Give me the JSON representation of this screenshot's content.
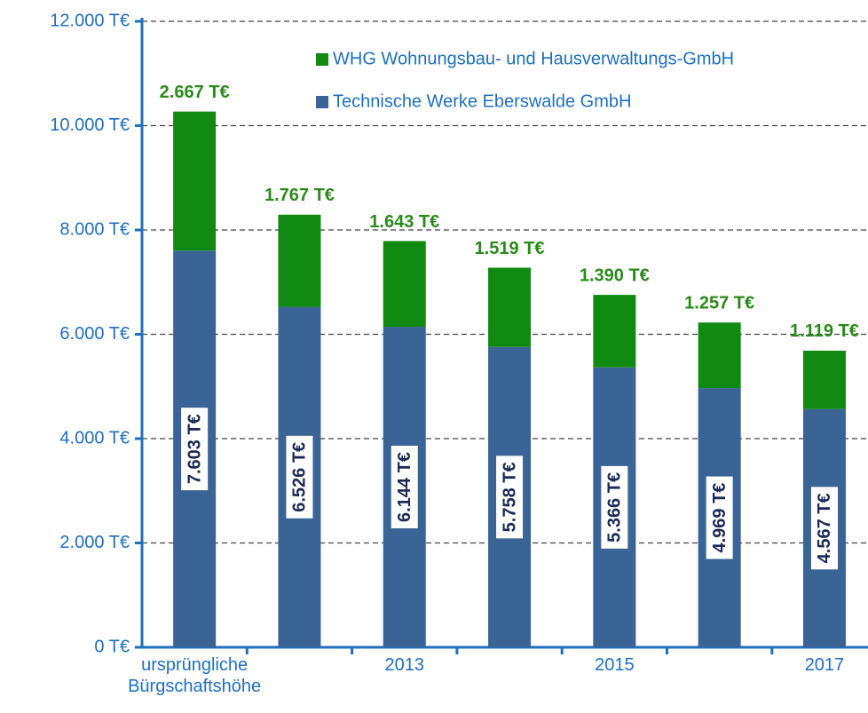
{
  "chart_data": {
    "type": "stacked_bar",
    "categories": [
      "ursprüngliche Bürgschaftshöhe",
      null,
      "2013",
      null,
      "2015",
      null,
      "2017"
    ],
    "series": [
      {
        "name": "Technische Werke Eberswalde GmbH",
        "color": "#3a6495",
        "values": [
          7603,
          6526,
          6144,
          5758,
          5366,
          4969,
          4567
        ],
        "value_labels": [
          "7.603 T€",
          "6.526 T€",
          "6.144 T€",
          "5.758 T€",
          "5.366 T€",
          "4.969 T€",
          "4.567 T€"
        ]
      },
      {
        "name": "WHG Wohnungsbau- und Hausverwaltungs-GmbH",
        "color": "#118a11",
        "values": [
          2667,
          1767,
          1643,
          1519,
          1390,
          1257,
          1119
        ],
        "value_labels": [
          "2.667 T€",
          "1.767 T€",
          "1.643 T€",
          "1.519 T€",
          "1.390 T€",
          "1.257 T€",
          "1.119 T€"
        ]
      }
    ],
    "ylim": [
      0,
      12000
    ],
    "yticks": [
      {
        "value": 0,
        "label": "0 T€"
      },
      {
        "value": 2000,
        "label": "2.000 T€"
      },
      {
        "value": 4000,
        "label": "4.000 T€"
      },
      {
        "value": 6000,
        "label": "6.000 T€"
      },
      {
        "value": 8000,
        "label": "8.000 T€"
      },
      {
        "value": 10000,
        "label": "10.000 T€"
      },
      {
        "value": 12000,
        "label": "12.000 T€"
      }
    ],
    "grid": true
  }
}
